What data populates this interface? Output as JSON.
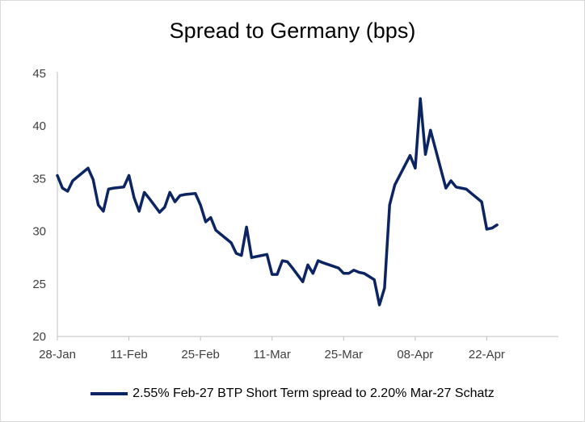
{
  "chart_data": {
    "type": "line",
    "title": "Spread to Germany (bps)",
    "xlabel": "",
    "ylabel": "",
    "ylim": [
      20,
      45
    ],
    "yticks": [
      20,
      25,
      30,
      35,
      40,
      45
    ],
    "xlim": [
      0,
      98
    ],
    "xticks": [
      {
        "label": "28-Jan",
        "day": 0
      },
      {
        "label": "11-Feb",
        "day": 14
      },
      {
        "label": "25-Feb",
        "day": 28
      },
      {
        "label": "11-Mar",
        "day": 42
      },
      {
        "label": "25-Mar",
        "day": 56
      },
      {
        "label": "08-Apr",
        "day": 70
      },
      {
        "label": "22-Apr",
        "day": 84
      }
    ],
    "grid": false,
    "legend_position": "bottom",
    "series": [
      {
        "name": "2.55% Feb-27 BTP Short Term spread to 2.20% Mar-27 Schatz",
        "color": "#0c2461",
        "x": [
          0,
          1,
          2,
          3,
          4,
          5,
          6,
          7,
          8,
          9,
          10,
          11,
          13,
          14,
          15,
          16,
          17,
          18,
          20,
          21,
          22,
          23,
          24,
          25,
          27,
          28,
          29,
          30,
          31,
          32,
          34,
          35,
          36,
          37,
          38,
          39,
          41,
          42,
          43,
          44,
          45,
          46,
          48,
          49,
          50,
          51,
          52,
          55,
          56,
          57,
          58,
          59,
          60,
          62,
          63,
          64,
          65,
          66,
          69,
          70,
          71,
          72,
          73,
          76,
          77,
          78,
          79,
          80,
          81,
          83,
          84,
          85,
          86
        ],
        "values": [
          35.3,
          34.1,
          33.8,
          34.8,
          35.2,
          35.6,
          36.0,
          34.9,
          32.5,
          31.9,
          34.0,
          34.1,
          34.2,
          35.3,
          33.2,
          31.9,
          33.7,
          33.1,
          31.8,
          32.3,
          33.7,
          32.8,
          33.4,
          33.5,
          33.6,
          32.5,
          30.9,
          31.3,
          30.1,
          29.7,
          28.9,
          27.9,
          27.7,
          30.4,
          27.5,
          27.6,
          27.8,
          25.9,
          25.9,
          27.2,
          27.1,
          26.5,
          25.2,
          26.8,
          26.0,
          27.2,
          27.0,
          26.5,
          26.0,
          26.0,
          26.3,
          26.1,
          26.0,
          25.4,
          23.0,
          24.6,
          32.5,
          34.4,
          37.2,
          36.0,
          42.6,
          37.3,
          39.6,
          34.1,
          34.8,
          34.2,
          34.1,
          34.0,
          33.6,
          32.8,
          30.2,
          30.3,
          30.6
        ]
      }
    ]
  }
}
